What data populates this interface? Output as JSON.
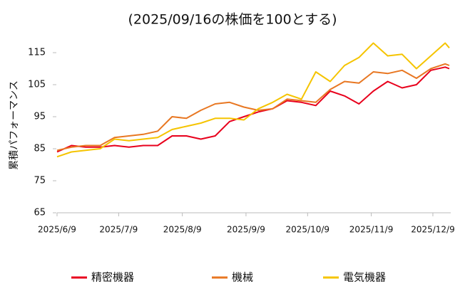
{
  "chart_data": {
    "type": "line",
    "title": "(2025/09/16の株価を100とする)",
    "y_label": "累積パフォーマンス",
    "x": [
      "2025/6/9",
      "2025/6/16",
      "2025/6/23",
      "2025/6/30",
      "2025/7/7",
      "2025/7/14",
      "2025/7/21",
      "2025/7/28",
      "2025/8/4",
      "2025/8/11",
      "2025/8/18",
      "2025/8/25",
      "2025/9/1",
      "2025/9/8",
      "2025/9/15",
      "2025/9/22",
      "2025/9/29",
      "2025/10/6",
      "2025/10/13",
      "2025/10/20",
      "2025/10/27",
      "2025/11/3",
      "2025/11/10",
      "2025/11/17",
      "2025/11/24",
      "2025/12/1",
      "2025/12/8",
      "2025/12/15",
      "2025/12/17"
    ],
    "series": [
      {
        "name": "精密機器",
        "color": "#e8001c",
        "values": [
          84,
          86,
          85.5,
          85.5,
          86,
          85.5,
          86,
          86,
          89,
          89,
          88,
          89,
          93.5,
          95,
          96.5,
          97.5,
          100,
          99.5,
          98.5,
          103,
          101.5,
          99,
          103,
          106,
          104,
          105,
          109.5,
          110.5,
          110
        ]
      },
      {
        "name": "機械",
        "color": "#e87722",
        "values": [
          84.5,
          85.5,
          86,
          86,
          88.5,
          89,
          89.5,
          90.5,
          95,
          94.5,
          97,
          99,
          99.5,
          98,
          97,
          97.5,
          100.5,
          100,
          99.5,
          103.5,
          106,
          105.5,
          109,
          108.5,
          109.5,
          107,
          110,
          111.5,
          111
        ]
      },
      {
        "name": "電気機器",
        "color": "#f5c400",
        "values": [
          82.5,
          84,
          84.5,
          85,
          88,
          87.5,
          88,
          88.5,
          91,
          92,
          93,
          94.5,
          94.5,
          94,
          97.5,
          99.5,
          102,
          100.5,
          109,
          106,
          111,
          113.5,
          118,
          114,
          114.5,
          110,
          114,
          118,
          116.5
        ]
      }
    ],
    "xlim": [
      "2025/6/9",
      "2025/12/17"
    ],
    "xticks": [
      "2025/6/9",
      "2025/7/9",
      "2025/8/9",
      "2025/9/9",
      "2025/10/9",
      "2025/11/9",
      "2025/12/9"
    ],
    "ylim": [
      65,
      119
    ],
    "yticks": [
      65,
      75,
      85,
      95,
      105,
      115
    ],
    "legend": "bottom"
  }
}
